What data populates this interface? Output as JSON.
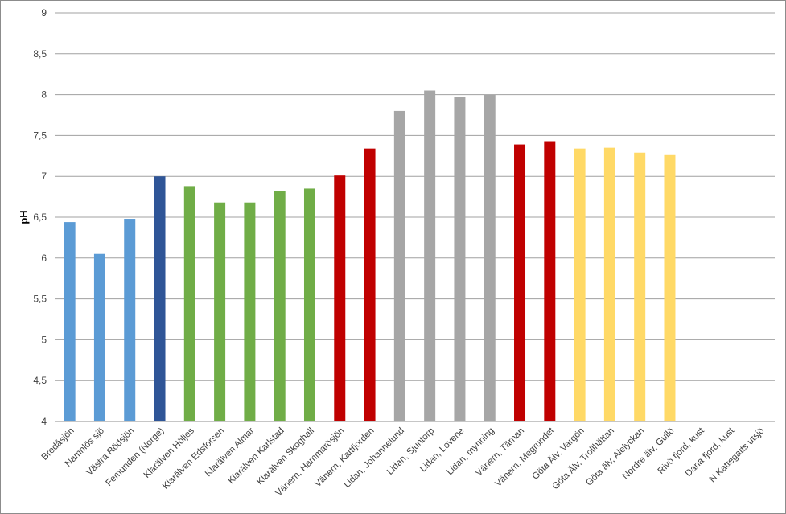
{
  "chart_data": {
    "type": "bar",
    "title": "",
    "xlabel": "",
    "ylabel": "pH",
    "ylim": [
      4,
      9
    ],
    "y_ticks": [
      "4",
      "4,5",
      "5",
      "5,5",
      "6",
      "6,5",
      "7",
      "7,5",
      "8",
      "8,5",
      "9"
    ],
    "grid": "horizontal",
    "legend": "none",
    "categories": [
      "Bredåsjön",
      "Namnlös sjö",
      "Västra Rödsjön",
      "Femunden (Norge)",
      "Klarälven Höljes",
      "Klarälven Edsforsen",
      "Klarälven Almar",
      "Klarälven Karlstad",
      "Klarälven Skoghall",
      "Vänern, Hammarösjön",
      "Vänern, Kattfjorden",
      "Lidan, Johannelund",
      "Lidan, Sjuntorp",
      "Lidan, Lovene",
      "Lidan, mynning",
      "Vänern, Tärnan",
      "Vänern, Megrundet",
      "Göta Älv, Vargön",
      "Göta Älv, Trollhättan",
      "Göta älv, Alelyckan",
      "Nordre älv, Gullö",
      "Rivö fjord, kust",
      "Dana fjord, kust",
      "N Kattegatts utsjö"
    ],
    "values": [
      6.44,
      6.05,
      6.48,
      7.0,
      6.88,
      6.68,
      6.68,
      6.82,
      6.85,
      7.01,
      7.34,
      7.8,
      8.05,
      7.97,
      8.0,
      7.39,
      7.43,
      7.34,
      7.35,
      7.29,
      7.26,
      null,
      null,
      null
    ],
    "colors": [
      "#5b9bd5",
      "#5b9bd5",
      "#5b9bd5",
      "#2f5597",
      "#70ad47",
      "#70ad47",
      "#70ad47",
      "#70ad47",
      "#70ad47",
      "#c00000",
      "#c00000",
      "#a6a6a6",
      "#a6a6a6",
      "#a6a6a6",
      "#a6a6a6",
      "#c00000",
      "#c00000",
      "#ffd966",
      "#ffd966",
      "#ffd966",
      "#ffd966",
      "#ffd966",
      "#ffd966",
      "#ffd966"
    ],
    "gridline_color": "#a0a0a0"
  }
}
